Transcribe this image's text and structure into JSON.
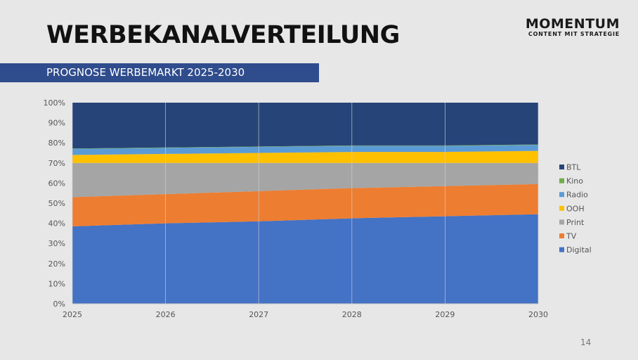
{
  "slide": {
    "title": "WERBEKANALVERTEILUNG",
    "subtitle": "PROGNOSE WERBEMARKT 2025-2030",
    "page_number": "14"
  },
  "logo": {
    "name": "MOMENTUM",
    "tagline": "CONTENT MIT STRATEGIE"
  },
  "colors": {
    "background": "#e7e7e7",
    "subtitle_bar": "#2f4c8c",
    "Digital": "#4472c4",
    "TV": "#ed7d31",
    "Print": "#a5a5a5",
    "OOH": "#ffc000",
    "Radio": "#5b9bd5",
    "Kino": "#70ad47",
    "BTL": "#264478"
  },
  "chart_data": {
    "type": "area",
    "stacked": true,
    "percent": true,
    "x": [
      2025,
      2026,
      2027,
      2028,
      2029,
      2030
    ],
    "x_tick_labels": [
      "2025",
      "2026",
      "2027",
      "2028",
      "2029",
      "2030"
    ],
    "y_tick_labels": [
      "0%",
      "10%",
      "20%",
      "30%",
      "40%",
      "50%",
      "60%",
      "70%",
      "80%",
      "90%",
      "100%"
    ],
    "ylim": [
      0,
      100
    ],
    "grid": "vertical",
    "legend_position": "right",
    "series": [
      {
        "name": "Digital",
        "values": [
          38.5,
          40,
          41,
          42.5,
          43.5,
          44.5
        ]
      },
      {
        "name": "TV",
        "values": [
          14.5,
          14.5,
          15,
          15,
          15,
          15
        ]
      },
      {
        "name": "Print",
        "values": [
          17,
          15.5,
          14,
          12.5,
          11.5,
          10.5
        ]
      },
      {
        "name": "OOH",
        "values": [
          4,
          4.5,
          5,
          5.5,
          5.5,
          6
        ]
      },
      {
        "name": "Radio",
        "values": [
          3,
          3,
          3,
          3,
          3,
          3
        ]
      },
      {
        "name": "Kino",
        "values": [
          0.2,
          0.2,
          0.2,
          0.2,
          0.2,
          0.2
        ]
      },
      {
        "name": "BTL",
        "values": [
          22.8,
          22.3,
          21.8,
          21.3,
          21.3,
          20.8
        ]
      }
    ],
    "legend_order": [
      "BTL",
      "Kino",
      "Radio",
      "OOH",
      "Print",
      "TV",
      "Digital"
    ]
  }
}
